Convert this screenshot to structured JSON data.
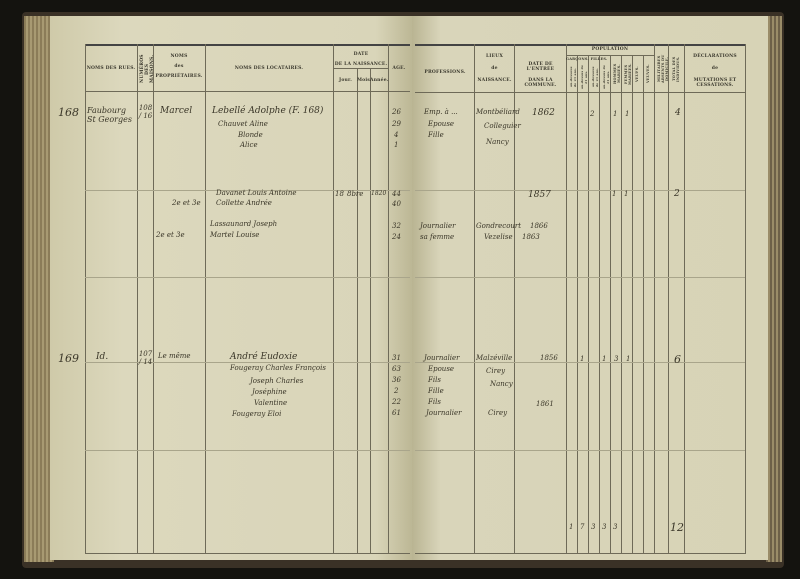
{
  "headers_left": {
    "rue": "NOMS DES RUES.",
    "numeros": "NUMÉROS DES MAISONS.",
    "proprietaires": [
      "NOMS",
      "des",
      "PROPRIÉTAIRES."
    ],
    "locataires": "NOMS DES LOCATAIRES.",
    "date": [
      "DATE",
      "DE LA NAISSANCE."
    ],
    "jour": "Jour.",
    "mois": "Mois.",
    "annee": "Année.",
    "age": "AGE."
  },
  "headers_right": {
    "professions": "PROFESSIONS.",
    "lieux": [
      "LIEUX",
      "de",
      "NAISSANCE."
    ],
    "entree": [
      "DATE DE L'ENTRÉE",
      "DANS LA COMMUNE."
    ],
    "population": "POPULATION",
    "garcons": "GARÇONS.",
    "filles": "FILLES.",
    "pop_cols": [
      "au-dessous de 21 ans.",
      "au-dessus de 21 ans.",
      "au-dessous de 21 ans.",
      "au-dessus de 21 ans.",
      "HOMMES MARIÉS.",
      "FEMMES MARIÉES.",
      "VEUFS.",
      "VEUVES."
    ],
    "militaires": "MILITAIRES ABSENTS DU DOMICILE.",
    "total": "TOTAL DES INDIVIDUS.",
    "declarations": [
      "DÉCLARATIONS",
      "de",
      "MUTATIONS ET CESSATIONS."
    ]
  },
  "entries": [
    {
      "folio": "168",
      "rue": "Faubourg St Georges",
      "numero": "108 / 16",
      "proprietaire": "Marcel",
      "locataires": [
        "Lebellé Adolphe (F. 168)",
        "Chauvet Aline",
        "Blonde",
        "Alice"
      ],
      "ages": [
        "26",
        "29",
        "4",
        "1"
      ],
      "professions": [
        "Emp. à ...",
        "Epouse",
        "Fille"
      ],
      "lieux": [
        "Montbéliard",
        "Colleguier",
        "Nancy"
      ],
      "entree": "1862",
      "pop": [
        "2",
        "1",
        "1"
      ],
      "total": "4"
    },
    {
      "proprietaire": "2e et 3e",
      "locataires": [
        "Davanet Louis Antoine",
        "Collette Andrée"
      ],
      "date": [
        "18",
        "8bre",
        "1820"
      ],
      "ages": [
        "44",
        "40"
      ],
      "entree": "1857",
      "pop": [
        "1",
        "1"
      ],
      "total": "2"
    },
    {
      "proprietaire": "2e et 3e",
      "locataires": [
        "Lassaunard Joseph",
        "Martel Louise"
      ],
      "ages": [
        "32",
        "24"
      ],
      "professions": [
        "Journalier",
        "sa femme"
      ],
      "lieux": [
        "Gondrecourt",
        "Vezelise"
      ],
      "entree": [
        "1866",
        "1863"
      ]
    },
    {
      "folio": "169",
      "rue": "Id.",
      "numero": "107 / 14",
      "proprietaire": "Le même",
      "locataires": [
        "André Eudoxie",
        "Fougeray Charles François",
        "Joseph Charles",
        "Joséphine",
        "Valentine",
        "Fougeray Eloi"
      ],
      "ages": [
        "31",
        "63",
        "36",
        "2",
        "22",
        "61"
      ],
      "professions": [
        "Journalier",
        "Epouse",
        "Fils",
        "Fille",
        "Fils",
        "Journalier"
      ],
      "lieux": [
        "Malzéville",
        "Cirey",
        "Nancy",
        "Cirey"
      ],
      "entree": [
        "1856",
        "1861"
      ],
      "pop": [
        "1",
        "1",
        "3",
        "1"
      ],
      "total": "6"
    }
  ],
  "totals": {
    "pop": [
      "1",
      "7",
      "3",
      "3",
      "3"
    ],
    "total": "12"
  }
}
